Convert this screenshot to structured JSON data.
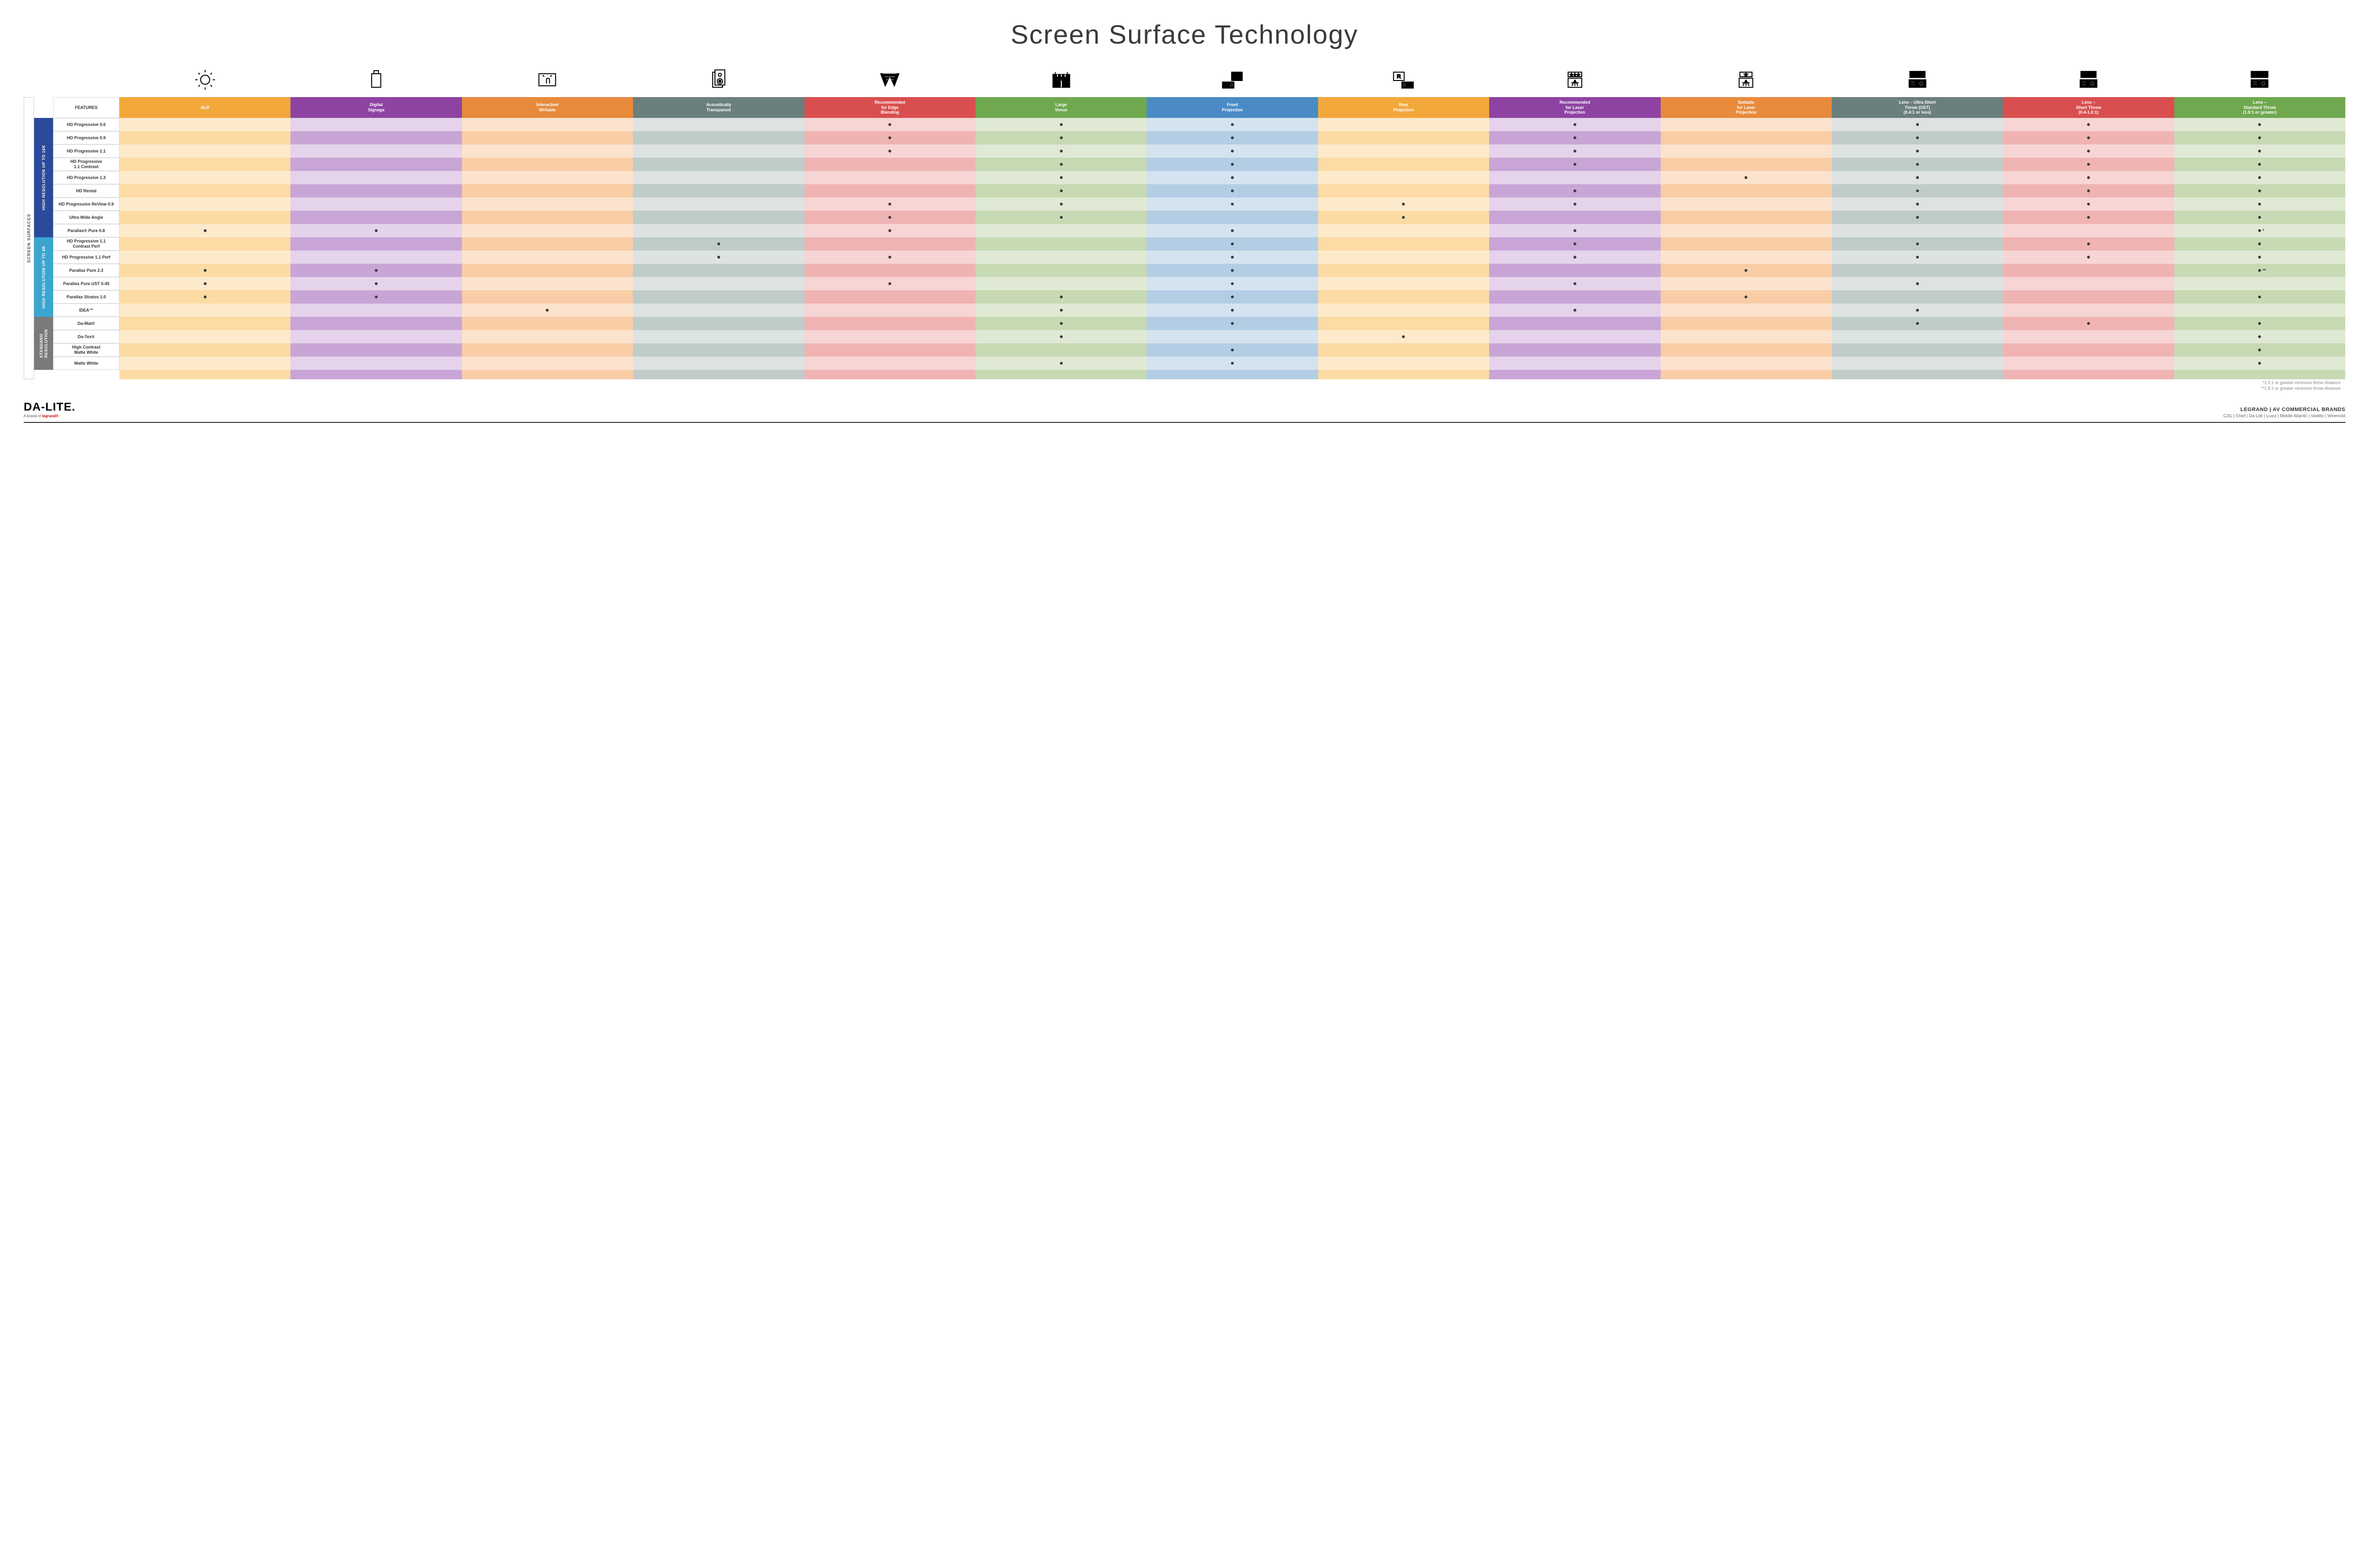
{
  "title": "Screen Surface Technology",
  "feature_header": "FEATURES",
  "side_outer_label": "SCREEN SURFACES",
  "columns": [
    {
      "key": "alr",
      "label": "ALR",
      "header_color": "#f2a83b",
      "light": "#fdeacb",
      "dark": "#fcdba4"
    },
    {
      "key": "digital_signage",
      "label": "Digital\nSignage",
      "header_color": "#8e43a3",
      "light": "#e5d3eb",
      "dark": "#c8a5d6"
    },
    {
      "key": "interactive",
      "label": "Interactive/\nWritable",
      "header_color": "#e88a3c",
      "light": "#fce3cd",
      "dark": "#f9cda5"
    },
    {
      "key": "acoustic",
      "label": "Acoustically\nTransparent",
      "header_color": "#6b7f7d",
      "light": "#dde3e2",
      "dark": "#c0ccca"
    },
    {
      "key": "edge_blend",
      "label": "Recommended\nfor Edge\nBlending",
      "header_color": "#d94f4f",
      "light": "#f7d5d5",
      "dark": "#f0b3b3"
    },
    {
      "key": "large_venue",
      "label": "Large\nVenue",
      "header_color": "#6fa84f",
      "light": "#dfe9d4",
      "dark": "#c7dab3"
    },
    {
      "key": "front_proj",
      "label": "Front\nProjection",
      "header_color": "#4a8bc5",
      "light": "#d5e3f0",
      "dark": "#b3cde5"
    },
    {
      "key": "rear_proj",
      "label": "Rear\nProjection",
      "header_color": "#f2a83b",
      "light": "#fdeacb",
      "dark": "#fcdba4"
    },
    {
      "key": "rec_laser",
      "label": "Recommended\nfor Laser\nProjection",
      "header_color": "#8e43a3",
      "light": "#e5d3eb",
      "dark": "#c8a5d6"
    },
    {
      "key": "suit_laser",
      "label": "Suitable\nfor Laser\nProjection",
      "header_color": "#e88a3c",
      "light": "#fce3cd",
      "dark": "#f9cda5"
    },
    {
      "key": "lens_ust",
      "label": "Lens – Ultra Short\nThrow (UST)\n(0.4:1 or less)",
      "header_color": "#6b7f7d",
      "light": "#dde3e2",
      "dark": "#c0ccca"
    },
    {
      "key": "lens_short",
      "label": "Lens –\nShort Throw\n(0.4-1.0:1)",
      "header_color": "#d94f4f",
      "light": "#f7d5d5",
      "dark": "#f0b3b3"
    },
    {
      "key": "lens_std",
      "label": "Lens –\nStandard Throw\n(1.0:1 or greater)",
      "header_color": "#6fa84f",
      "light": "#dfe9d4",
      "dark": "#c7dab3"
    }
  ],
  "groups": [
    {
      "label": "HIGH RESOLUTION UP TO 16K",
      "color": "#2a4b9b",
      "rows": [
        {
          "name": "HD Progressive 0.6",
          "dots": {
            "edge_blend": 1,
            "large_venue": 1,
            "front_proj": 1,
            "rec_laser": 1,
            "lens_ust": 1,
            "lens_short": 1,
            "lens_std": 1
          }
        },
        {
          "name": "HD Progressive 0.9",
          "dots": {
            "edge_blend": 1,
            "large_venue": 1,
            "front_proj": 1,
            "rec_laser": 1,
            "lens_ust": 1,
            "lens_short": 1,
            "lens_std": 1
          }
        },
        {
          "name": "HD Progressive 1.1",
          "dots": {
            "edge_blend": 1,
            "large_venue": 1,
            "front_proj": 1,
            "rec_laser": 1,
            "lens_ust": 1,
            "lens_short": 1,
            "lens_std": 1
          }
        },
        {
          "name": "HD Progressive\n1.1 Contrast",
          "dots": {
            "large_venue": 1,
            "front_proj": 1,
            "rec_laser": 1,
            "lens_ust": 1,
            "lens_short": 1,
            "lens_std": 1
          }
        },
        {
          "name": "HD Progressive 1.3",
          "dots": {
            "large_venue": 1,
            "front_proj": 1,
            "suit_laser": 1,
            "lens_ust": 1,
            "lens_short": 1,
            "lens_std": 1
          }
        },
        {
          "name": "HD Rental",
          "dots": {
            "large_venue": 1,
            "front_proj": 1,
            "rec_laser": 1,
            "lens_ust": 1,
            "lens_short": 1,
            "lens_std": 1
          }
        },
        {
          "name": "HD Progressive ReView 0.9",
          "dots": {
            "edge_blend": 1,
            "large_venue": 1,
            "front_proj": 1,
            "rear_proj": 1,
            "rec_laser": 1,
            "lens_ust": 1,
            "lens_short": 1,
            "lens_std": 1
          }
        },
        {
          "name": "Ultra Wide Angle",
          "dots": {
            "edge_blend": 1,
            "large_venue": 1,
            "rear_proj": 1,
            "lens_ust": 1,
            "lens_short": 1,
            "lens_std": 1
          }
        },
        {
          "name": "Parallax® Pure 0.8",
          "dots": {
            "alr": 1,
            "digital_signage": 1,
            "edge_blend": 1,
            "front_proj": 1,
            "rec_laser": 1,
            "lens_std": "*"
          }
        }
      ]
    },
    {
      "label": "HIGH RESOLUTION UP TO 4K",
      "color": "#3aa6d0",
      "rows": [
        {
          "name": "HD Progressive 1.1\nContrast Perf",
          "dots": {
            "acoustic": 1,
            "front_proj": 1,
            "rec_laser": 1,
            "lens_ust": 1,
            "lens_short": 1,
            "lens_std": 1
          }
        },
        {
          "name": "HD Progressive 1.1 Perf",
          "dots": {
            "acoustic": 1,
            "edge_blend": 1,
            "front_proj": 1,
            "rec_laser": 1,
            "lens_ust": 1,
            "lens_short": 1,
            "lens_std": 1
          }
        },
        {
          "name": "Parallax Pure 2.3",
          "dots": {
            "alr": 1,
            "digital_signage": 1,
            "front_proj": 1,
            "suit_laser": 1,
            "lens_std": "**"
          }
        },
        {
          "name": "Parallax Pure UST 0.45",
          "dots": {
            "alr": 1,
            "digital_signage": 1,
            "edge_blend": 1,
            "front_proj": 1,
            "rec_laser": 1,
            "lens_ust": 1
          }
        },
        {
          "name": "Parallax Stratos 1.0",
          "dots": {
            "alr": 1,
            "digital_signage": 1,
            "large_venue": 1,
            "front_proj": 1,
            "suit_laser": 1,
            "lens_std": 1
          }
        },
        {
          "name": "IDEA™",
          "dots": {
            "interactive": 1,
            "large_venue": 1,
            "front_proj": 1,
            "rec_laser": 1,
            "lens_ust": 1
          }
        }
      ]
    },
    {
      "label": "STANDARD\nRESOLUTION",
      "color": "#7a7a7a",
      "rows": [
        {
          "name": "Da-Mat®",
          "dots": {
            "large_venue": 1,
            "front_proj": 1,
            "lens_ust": 1,
            "lens_short": 1,
            "lens_std": 1
          }
        },
        {
          "name": "Da-Tex®",
          "dots": {
            "large_venue": 1,
            "rear_proj": 1,
            "lens_std": 1
          }
        },
        {
          "name": "High Contrast\nMatte White",
          "dots": {
            "front_proj": 1,
            "lens_std": 1
          }
        },
        {
          "name": "Matte White",
          "dots": {
            "large_venue": 1,
            "front_proj": 1,
            "lens_std": 1
          }
        }
      ]
    }
  ],
  "footnotes": [
    "*1.5:1 or greater minimum throw distance",
    "**1.8:1 or greater minimum throw distance"
  ],
  "brand": {
    "name": "DA-LITE.",
    "sub_prefix": "A brand of ",
    "sub_brand": "legrand®"
  },
  "right_brand": {
    "top": "LEGRAND | AV COMMERCIAL BRANDS",
    "bottom": "C2G  |  Chief  |  Da-Lite  |  Luxul  |  Middle Atlantic  |  Vaddio  |  Wiremold"
  },
  "icons": [
    "bulb",
    "signage",
    "touch",
    "speaker",
    "blend",
    "venue",
    "front",
    "rear",
    "laser_rec",
    "laser_suit",
    "ust",
    "short",
    "standard"
  ]
}
